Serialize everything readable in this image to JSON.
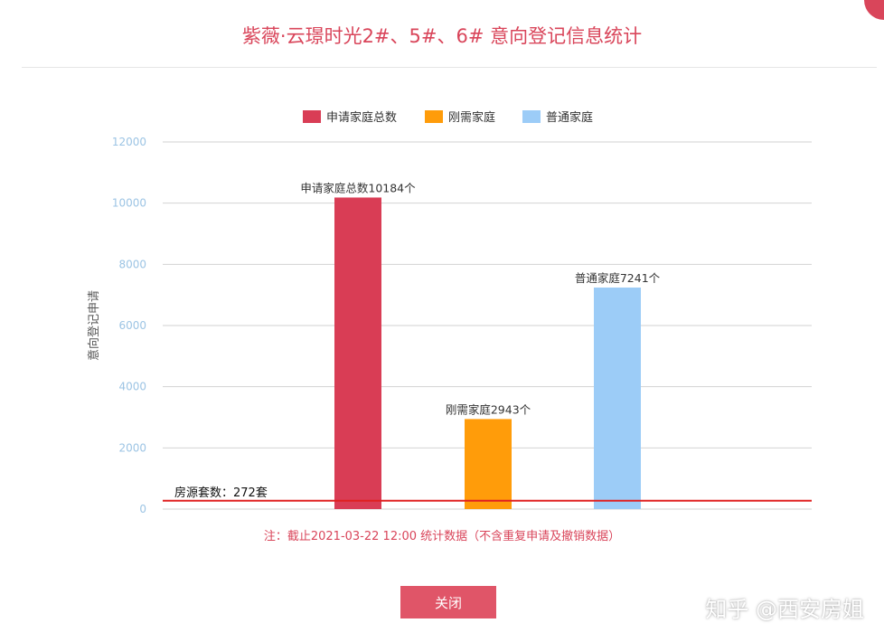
{
  "header": {
    "title": "紫薇·云璟时光2#、5#、6# 意向登记信息统计"
  },
  "colors": {
    "accent": "#d9455a",
    "series1": "#d93d55",
    "series2": "#ff9c0a",
    "series3": "#9cccf7",
    "refline": "#e02020"
  },
  "chart_data": {
    "type": "bar",
    "ylabel": "意向登记申请",
    "ylim": [
      0,
      12000
    ],
    "yticks": [
      0,
      2000,
      4000,
      6000,
      8000,
      10000,
      12000
    ],
    "legend_position": "top-center",
    "grid": true,
    "series": [
      {
        "name": "申请家庭总数",
        "value": 10184,
        "label": "申请家庭总数10184个",
        "color": "#d93d55"
      },
      {
        "name": "刚需家庭",
        "value": 2943,
        "label": "刚需家庭2943个",
        "color": "#ff9c0a"
      },
      {
        "name": "普通家庭",
        "value": 7241,
        "label": "普通家庭7241个",
        "color": "#9cccf7"
      }
    ],
    "reference_line": {
      "value": 272,
      "label": "房源套数：272套"
    }
  },
  "note": "注：截止2021-03-22 12:00 统计数据（不含重复申请及撤销数据）",
  "actions": {
    "close_label": "关闭"
  },
  "watermark": "知乎 @西安房姐"
}
